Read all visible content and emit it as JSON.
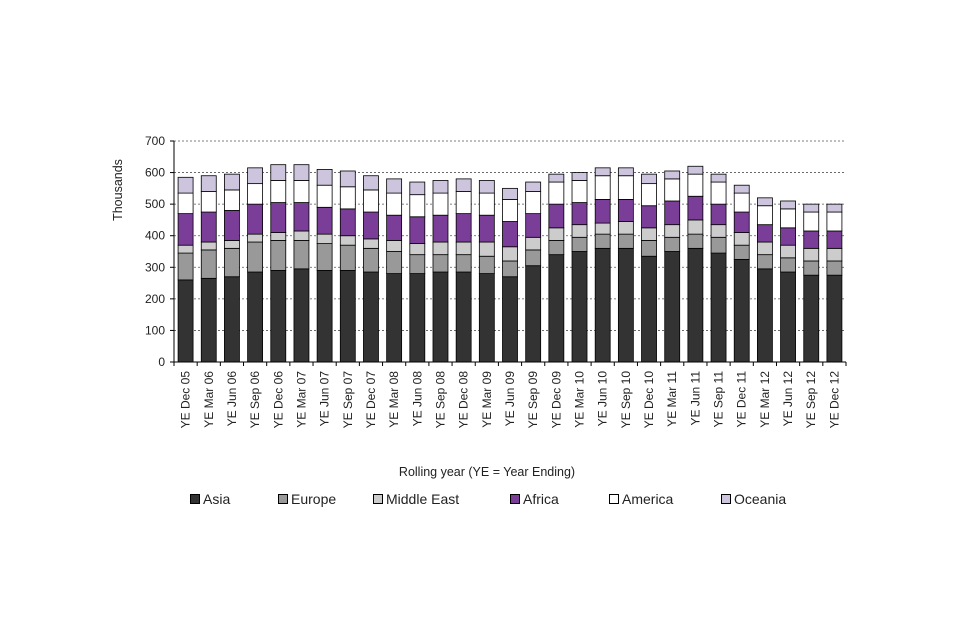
{
  "chart_data": {
    "type": "bar",
    "stacked": true,
    "title": "",
    "xlabel": "Rolling year (YE = Year Ending)",
    "ylabel": "Thousands",
    "ylim": [
      0,
      700
    ],
    "yticks": [
      0,
      100,
      200,
      300,
      400,
      500,
      600,
      700
    ],
    "grid": true,
    "legend_position": "bottom",
    "categories": [
      "YE Dec 05",
      "YE Mar 06",
      "YE Jun 06",
      "YE Sep 06",
      "YE Dec 06",
      "YE Mar 07",
      "YE Jun 07",
      "YE Sep 07",
      "YE Dec 07",
      "YE Mar 08",
      "YE Jun 08",
      "YE Sep 08",
      "YE Dec 08",
      "YE Mar 09",
      "YE Jun 09",
      "YE Sep 09",
      "YE Dec 09",
      "YE Mar 10",
      "YE Jun 10",
      "YE Sep 10",
      "YE Dec 10",
      "YE Mar 11",
      "YE Jun 11",
      "YE Sep 11",
      "YE Dec 11",
      "YE Mar 12",
      "YE Jun 12",
      "YE Sep 12",
      "YE Dec 12"
    ],
    "series": [
      {
        "name": "Asia",
        "color": "#333333",
        "values": [
          260,
          265,
          270,
          285,
          290,
          295,
          290,
          290,
          285,
          280,
          280,
          285,
          285,
          280,
          270,
          305,
          340,
          350,
          360,
          360,
          335,
          350,
          360,
          345,
          325,
          295,
          285,
          275,
          275
        ]
      },
      {
        "name": "Europe",
        "color": "#999999",
        "values": [
          85,
          90,
          90,
          95,
          95,
          90,
          85,
          80,
          75,
          70,
          60,
          55,
          55,
          55,
          50,
          50,
          45,
          45,
          45,
          45,
          50,
          45,
          45,
          50,
          45,
          45,
          45,
          45,
          45
        ]
      },
      {
        "name": "Middle East",
        "color": "#cccccc",
        "values": [
          25,
          25,
          25,
          25,
          25,
          30,
          30,
          30,
          30,
          35,
          35,
          40,
          40,
          45,
          45,
          40,
          40,
          40,
          35,
          40,
          40,
          40,
          45,
          40,
          40,
          40,
          40,
          40,
          40
        ]
      },
      {
        "name": "Africa",
        "color": "#7a3e99",
        "values": [
          100,
          95,
          95,
          95,
          95,
          90,
          85,
          85,
          85,
          80,
          85,
          85,
          90,
          85,
          80,
          75,
          75,
          70,
          75,
          70,
          70,
          75,
          75,
          65,
          65,
          55,
          55,
          55,
          55
        ]
      },
      {
        "name": "America",
        "color": "#ffffff",
        "values": [
          65,
          65,
          65,
          65,
          70,
          70,
          70,
          70,
          70,
          70,
          70,
          70,
          70,
          70,
          70,
          70,
          70,
          70,
          75,
          75,
          70,
          70,
          70,
          70,
          60,
          60,
          60,
          60,
          60
        ]
      },
      {
        "name": "Oceania",
        "color": "#cdc4dd",
        "values": [
          50,
          50,
          50,
          50,
          50,
          50,
          50,
          50,
          45,
          45,
          40,
          40,
          40,
          40,
          35,
          30,
          25,
          25,
          25,
          25,
          30,
          25,
          25,
          25,
          25,
          25,
          25,
          25,
          25
        ]
      }
    ]
  }
}
